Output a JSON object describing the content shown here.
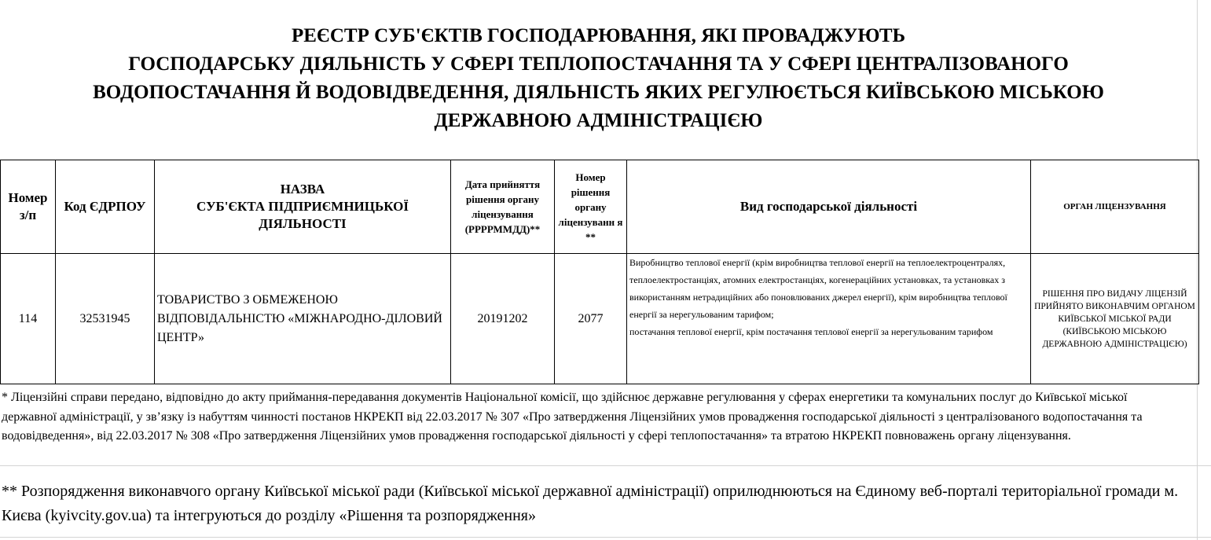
{
  "title": "РЕЄСТР СУБ'ЄКТІВ ГОСПОДАРЮВАННЯ, ЯКІ ПРОВАДЖУЮТЬ\nГОСПОДАРСЬКУ  ДІЯЛЬНІСТЬ У СФЕРІ ТЕПЛОПОСТАЧАННЯ ТА У СФЕРІ ЦЕНТРАЛІЗОВАНОГО\nВОДОПОСТАЧАННЯ Й ВОДОВІДВЕДЕННЯ, ДІЯЛЬНІСТЬ ЯКИХ РЕГУЛЮЄТЬСЯ КИЇВСЬКОЮ МІСЬКОЮ\nДЕРЖАВНОЮ АДМІНІСТРАЦІЄЮ",
  "table": {
    "headers": {
      "number": "Номер з/п",
      "code": "Код ЄДРПОУ",
      "name": "НАЗВА\nСУБ'ЄКТА ПІДПРИЄМНИЦЬКОЇ ДІЯЛЬНОСТІ",
      "date": "Дата прийняття рішення  органу ліцензування (РРРРММДД)**",
      "decision": "Номер рішення органу ліцензуванн я **",
      "activity": "Вид господарської діяльності",
      "authority": "ОРГАН ЛІЦЕНЗУВАННЯ"
    },
    "rows": [
      {
        "number": "114",
        "code": "32531945",
        "name": "ТОВАРИСТВО З ОБМЕЖЕНОЮ ВІДПОВІДАЛЬНІСТЮ «МІЖНАРОДНО-ДІЛОВИЙ ЦЕНТР»",
        "date": "20191202",
        "decision": "2077",
        "activity": "Виробництво теплової енергії (крім виробництва теплової енергії на теплоелектроцентралях, теплоелектростанціях, атомних електростанціях, когенераційних установках, та установках з використанням нетрадиційних або поновлюваних джерел енергії), крім виробництва теплової енергії за нерегульованим тарифом;\nпостачання теплової енергії, крім постачання теплової енергії за нерегульованим тарифом",
        "authority": "РІШЕННЯ ПРО ВИДАЧУ ЛІЦЕНЗІЙ ПРИЙНЯТО ВИКОНАВЧИМ ОРГАНОМ КИЇВСЬКОЇ МІСЬКОЇ РАДИ (КИЇВСЬКОЮ МІСЬКОЮ ДЕРЖАВНОЮ АДМІНІСТРАЦІЄЮ)"
      }
    ]
  },
  "footnotes": {
    "first": "* Ліцензійні справи передано, відповідно до акту приймання-передавання документів Національної комісії, що здійснює державне регулювання у сферах енергетики та комунальних послуг до Київської міської державної адміністрації, у зв’язку із набуттям чинності постанов НКРЕКП від 22.03.2017 № 307 «Про затвердження Ліцензійних умов провадження господарської діяльності з централізованого водопостачання та водовідведення», від 22.03.2017  № 308 «Про затвердження Ліцензійних умов провадження господарської діяльності у сфері теплопостачання» та втратою НКРЕКП повноважень органу ліцензування.",
    "second": "** Розпорядження виконавчого органу Київської міської ради (Київської міської державної адміністрації)  оприлюднюються на Єдиному веб-порталі територіальної громади м. Києва (kyivcity.gov.ua) та інтегруються до розділу «Рішення та розпорядження»"
  }
}
